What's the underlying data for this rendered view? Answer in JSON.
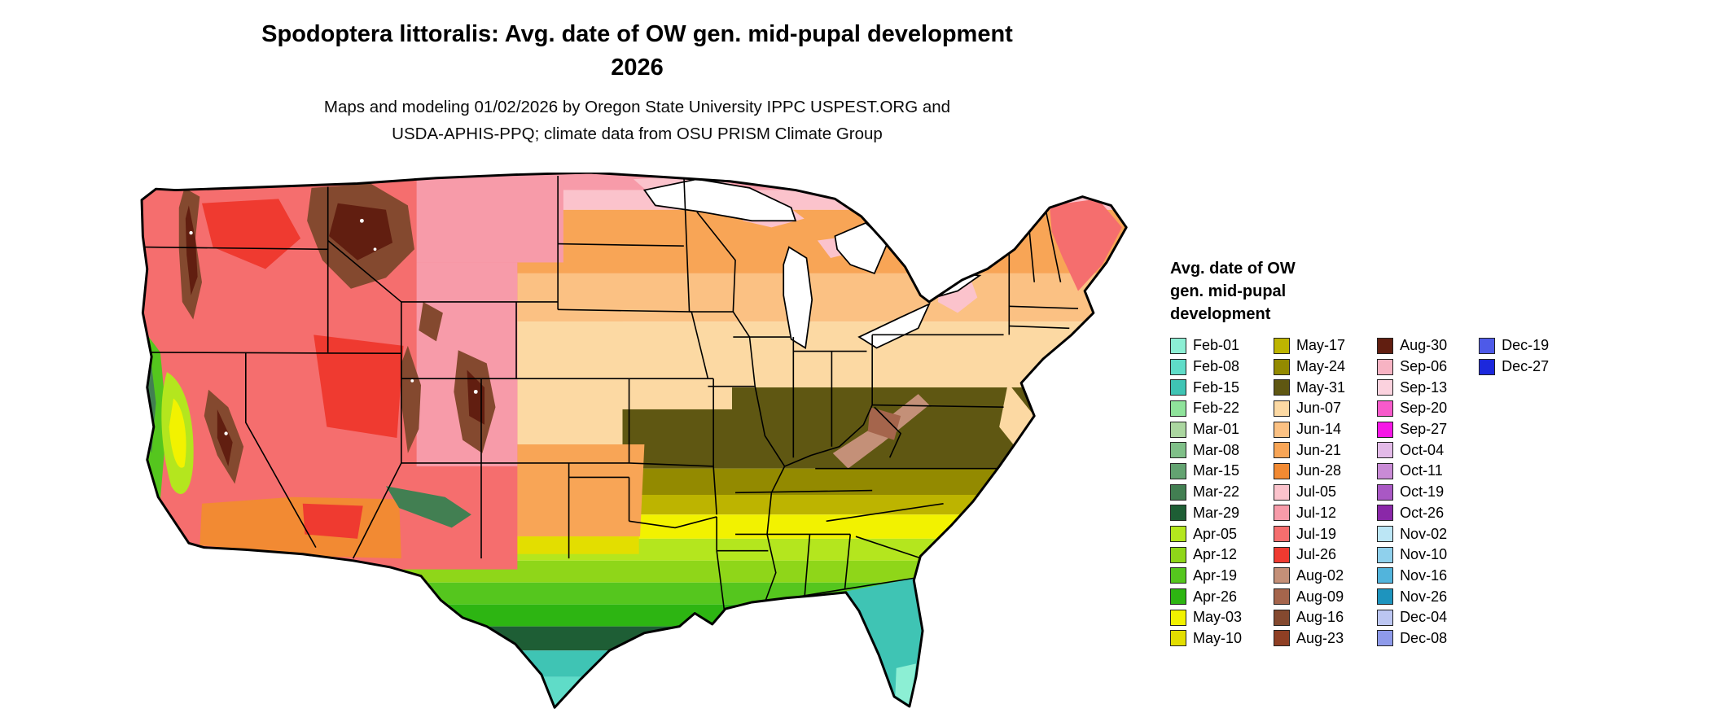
{
  "header": {
    "title_line1": "Spodoptera littoralis: Avg. date of OW gen. mid-pupal development",
    "title_line2": "2026",
    "subtitle_line1": "Maps and modeling 01/02/2026 by Oregon State University IPPC USPEST.ORG and",
    "subtitle_line2": "USDA-APHIS-PPQ; climate data from OSU PRISM Climate Group"
  },
  "legend": {
    "title_lines": [
      "Avg. date of OW",
      "gen. mid-pupal",
      "development"
    ],
    "columns": [
      15,
      15,
      15,
      2
    ]
  },
  "chart_data": {
    "type": "heatmap",
    "subtype": "choropleth raster map",
    "region": "Continental United States with state boundaries",
    "title": "Spodoptera littoralis: Avg. date of OW gen. mid-pupal development 2026",
    "legend_title": "Avg. date of OW gen. mid-pupal development",
    "bins": [
      {
        "label": "Feb-01",
        "color": "#8CEFD4"
      },
      {
        "label": "Feb-08",
        "color": "#5FDCC8"
      },
      {
        "label": "Feb-15",
        "color": "#3FC4B4"
      },
      {
        "label": "Feb-22",
        "color": "#8FE39B"
      },
      {
        "label": "Mar-01",
        "color": "#ABD6A0"
      },
      {
        "label": "Mar-08",
        "color": "#7FBF88"
      },
      {
        "label": "Mar-15",
        "color": "#63A371"
      },
      {
        "label": "Mar-22",
        "color": "#427F52"
      },
      {
        "label": "Mar-29",
        "color": "#1E5E35"
      },
      {
        "label": "Apr-05",
        "color": "#B4E61E"
      },
      {
        "label": "Apr-12",
        "color": "#8FD619"
      },
      {
        "label": "Apr-19",
        "color": "#55C61E"
      },
      {
        "label": "Apr-26",
        "color": "#2DB512"
      },
      {
        "label": "May-03",
        "color": "#F2F200"
      },
      {
        "label": "May-10",
        "color": "#E3DE00"
      },
      {
        "label": "May-17",
        "color": "#BDB400"
      },
      {
        "label": "May-24",
        "color": "#938A00"
      },
      {
        "label": "May-31",
        "color": "#5F5712"
      },
      {
        "label": "Jun-07",
        "color": "#FCD9A3"
      },
      {
        "label": "Jun-14",
        "color": "#FBC183"
      },
      {
        "label": "Jun-21",
        "color": "#F8A556"
      },
      {
        "label": "Jun-28",
        "color": "#F28A33"
      },
      {
        "label": "Jul-05",
        "color": "#FBC3CC"
      },
      {
        "label": "Jul-12",
        "color": "#F79BA9"
      },
      {
        "label": "Jul-19",
        "color": "#F56E6E"
      },
      {
        "label": "Jul-26",
        "color": "#EF3A30"
      },
      {
        "label": "Aug-02",
        "color": "#C49078"
      },
      {
        "label": "Aug-09",
        "color": "#A5654C"
      },
      {
        "label": "Aug-16",
        "color": "#84492F"
      },
      {
        "label": "Aug-23",
        "color": "#8F3F24"
      },
      {
        "label": "Aug-30",
        "color": "#611E10"
      },
      {
        "label": "Sep-06",
        "color": "#F7B3C3"
      },
      {
        "label": "Sep-13",
        "color": "#FBD2DE"
      },
      {
        "label": "Sep-20",
        "color": "#F75ACB"
      },
      {
        "label": "Sep-27",
        "color": "#F516E6"
      },
      {
        "label": "Oct-04",
        "color": "#E3BAE8"
      },
      {
        "label": "Oct-11",
        "color": "#C98BD6"
      },
      {
        "label": "Oct-19",
        "color": "#A958C4"
      },
      {
        "label": "Oct-26",
        "color": "#8A28A8"
      },
      {
        "label": "Nov-02",
        "color": "#BCE6F5"
      },
      {
        "label": "Nov-10",
        "color": "#8FD0EC"
      },
      {
        "label": "Nov-16",
        "color": "#52B4DC"
      },
      {
        "label": "Nov-26",
        "color": "#1E94BE"
      },
      {
        "label": "Dec-04",
        "color": "#BCC6F2"
      },
      {
        "label": "Dec-08",
        "color": "#8E9AEA"
      },
      {
        "label": "Dec-19",
        "color": "#4E5AE8"
      },
      {
        "label": "Dec-27",
        "color": "#1C28DC"
      }
    ],
    "spatial_pattern": [
      {
        "area": "South Florida and lower Texas Gulf coast",
        "date_range": "Feb-01 to Feb-22 (aqua/teal)"
      },
      {
        "area": "Gulf Coast fringe, north Florida, south Texas",
        "date_range": "Feb-15 to Mar-29 (teal to dark green)"
      },
      {
        "area": "Deep South (central TX, MS, AL, GA, SC)",
        "date_range": "Apr-05 to Apr-26 (greens)"
      },
      {
        "area": "Mid-South band (OK, AR, TN, NC)",
        "date_range": "May-03 to May-17 (yellows)"
      },
      {
        "area": "Central band (KS, MO, IL, IN, OH, KY, WV, VA)",
        "date_range": "May-24 to May-31 (olive / dark olive)"
      },
      {
        "area": "Corn belt and central plains (NE, IA, eastern CO plains)",
        "date_range": "Jun-07 to Jun-14 (tan / light orange)"
      },
      {
        "area": "Northern plains, Great Lakes, New England",
        "date_range": "Jun-21 to Jun-28 (orange)"
      },
      {
        "area": "Canadian border strip (ND, MN) and upper Michigan",
        "date_range": "Jul-05 to Jul-12 (pink)"
      },
      {
        "area": "Mountain West basin and range (WA, OR, NV, UT, MT, WY, CO)",
        "date_range": "Jul-12 to Jul-26 (pink / red)"
      },
      {
        "area": "High ranges (Cascades, Sierra Nevada, Rockies, Appalachians)",
        "date_range": "Aug-02 to Aug-30 (browns)"
      },
      {
        "area": "California Central Valley",
        "date_range": "Apr-05 to May-03 (yellow-green / yellow)"
      },
      {
        "area": "California and Pacific coast strip",
        "date_range": "Mar-22 to Apr-19 (greens)"
      },
      {
        "area": "Southern California deserts and Arizona",
        "date_range": "Jun-28 to Jul-26 (orange / red)"
      }
    ]
  }
}
